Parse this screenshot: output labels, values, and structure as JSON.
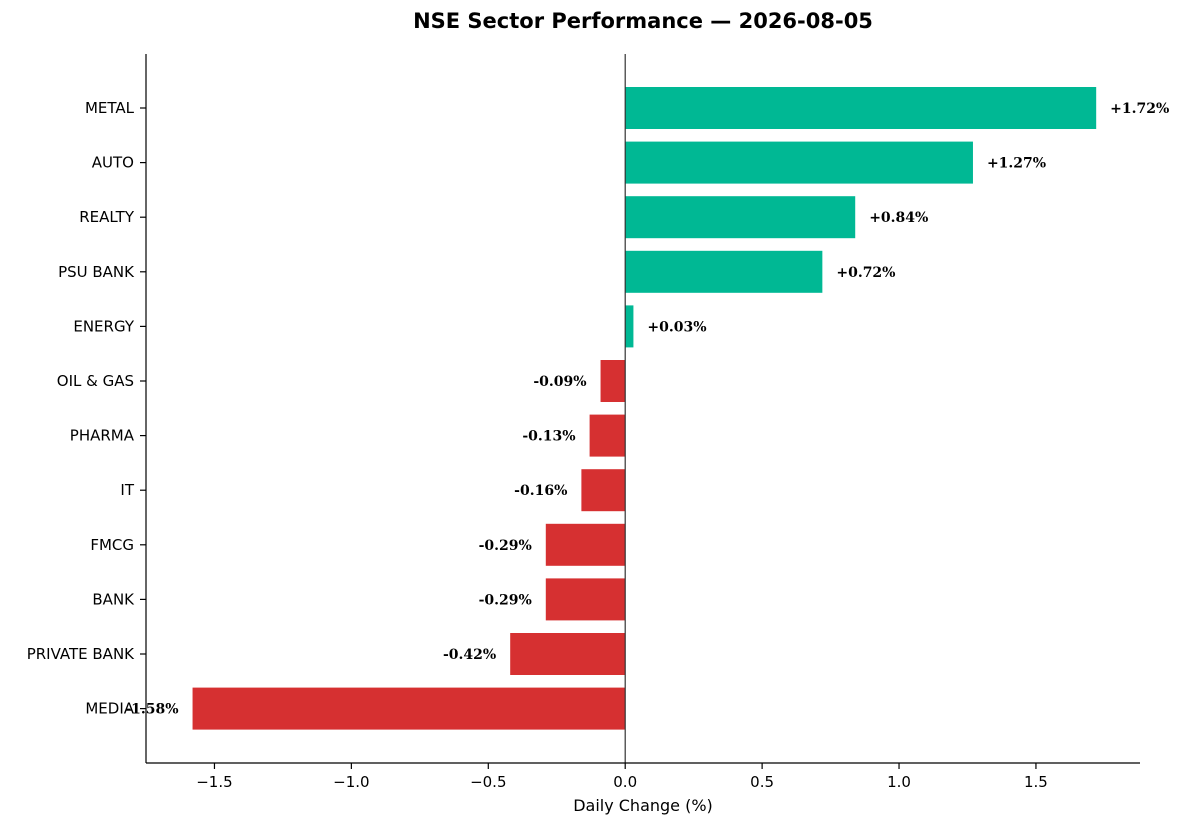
{
  "chart_data": {
    "type": "bar",
    "orientation": "horizontal",
    "title": "NSE Sector Performance — 2026-08-05",
    "xlabel": "Daily Change (%)",
    "ylabel": "",
    "xlim": [
      -1.75,
      1.88
    ],
    "xticks": [
      -1.5,
      -1.0,
      -0.5,
      0.0,
      0.5,
      1.0,
      1.5
    ],
    "xtick_labels": [
      "−1.5",
      "−1.0",
      "−0.5",
      "0.0",
      "0.5",
      "1.0",
      "1.5"
    ],
    "grid": false,
    "categories": [
      "METAL",
      "AUTO",
      "REALTY",
      "PSU BANK",
      "ENERGY",
      "OIL & GAS",
      "PHARMA",
      "IT",
      "FMCG",
      "BANK",
      "PRIVATE BANK",
      "MEDIA"
    ],
    "values": [
      1.72,
      1.27,
      0.84,
      0.72,
      0.03,
      -0.09,
      -0.13,
      -0.16,
      -0.29,
      -0.29,
      -0.42,
      -1.58
    ],
    "value_labels": [
      "+1.72%",
      "+1.27%",
      "+0.84%",
      "+0.72%",
      "+0.03%",
      "-0.09%",
      "-0.13%",
      "-0.16%",
      "-0.29%",
      "-0.29%",
      "-0.42%",
      "-1.58%"
    ],
    "colors": {
      "positive": "#00b894",
      "negative": "#d63031"
    }
  }
}
